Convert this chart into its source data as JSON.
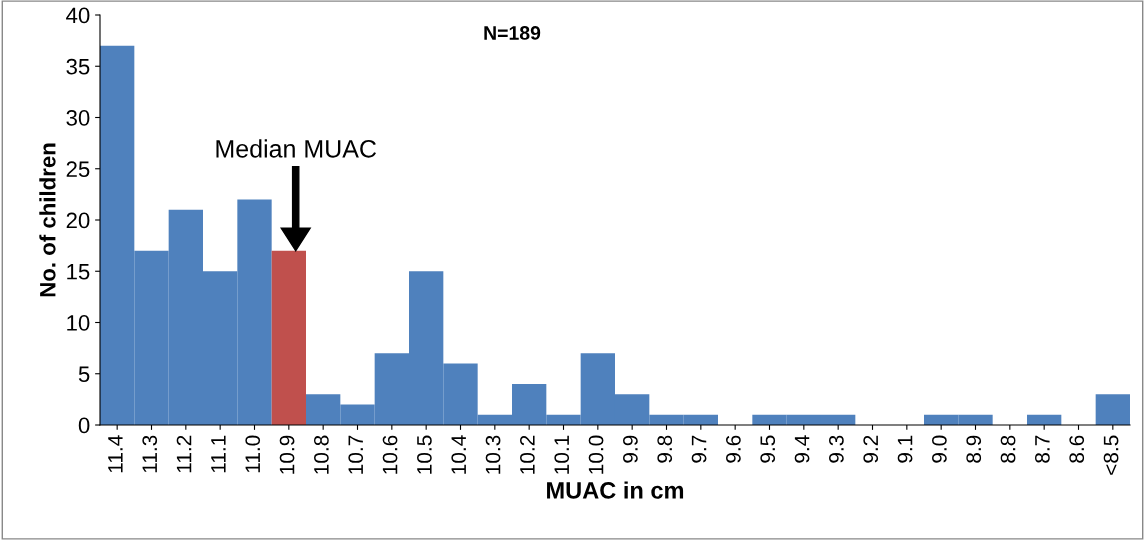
{
  "chart_data": {
    "type": "bar",
    "xlabel": "MUAC in cm",
    "ylabel": "No. of children",
    "categories": [
      "11.4",
      "11.3",
      "11.2",
      "11.1",
      "11.0",
      "10.9",
      "10.8",
      "10.7",
      "10.6",
      "10.5",
      "10.4",
      "10.3",
      "10.2",
      "10.1",
      "10.0",
      "9.9",
      "9.8",
      "9.7",
      "9.6",
      "9.5",
      "9.4",
      "9.3",
      "9.2",
      "9.1",
      "9.0",
      "8.9",
      "8.8",
      "8.7",
      "8.6",
      "<8.5"
    ],
    "values": [
      37,
      17,
      21,
      15,
      22,
      17,
      3,
      2,
      7,
      15,
      6,
      1,
      4,
      1,
      7,
      3,
      1,
      1,
      0,
      1,
      1,
      1,
      0,
      0,
      1,
      1,
      0,
      1,
      0,
      3
    ],
    "colors": [
      "#4f81bd",
      "#4f81bd",
      "#4f81bd",
      "#4f81bd",
      "#4f81bd",
      "#c0504d",
      "#4f81bd",
      "#4f81bd",
      "#4f81bd",
      "#4f81bd",
      "#4f81bd",
      "#4f81bd",
      "#4f81bd",
      "#4f81bd",
      "#4f81bd",
      "#4f81bd",
      "#4f81bd",
      "#4f81bd",
      "#4f81bd",
      "#4f81bd",
      "#4f81bd",
      "#4f81bd",
      "#4f81bd",
      "#4f81bd",
      "#4f81bd",
      "#4f81bd",
      "#4f81bd",
      "#4f81bd",
      "#4f81bd",
      "#4f81bd"
    ],
    "ylim": [
      0,
      40
    ],
    "yticks": [
      0,
      5,
      10,
      15,
      20,
      25,
      30,
      35,
      40
    ],
    "grid": false,
    "annotations": [
      "N=189",
      "Median MUAC"
    ]
  }
}
